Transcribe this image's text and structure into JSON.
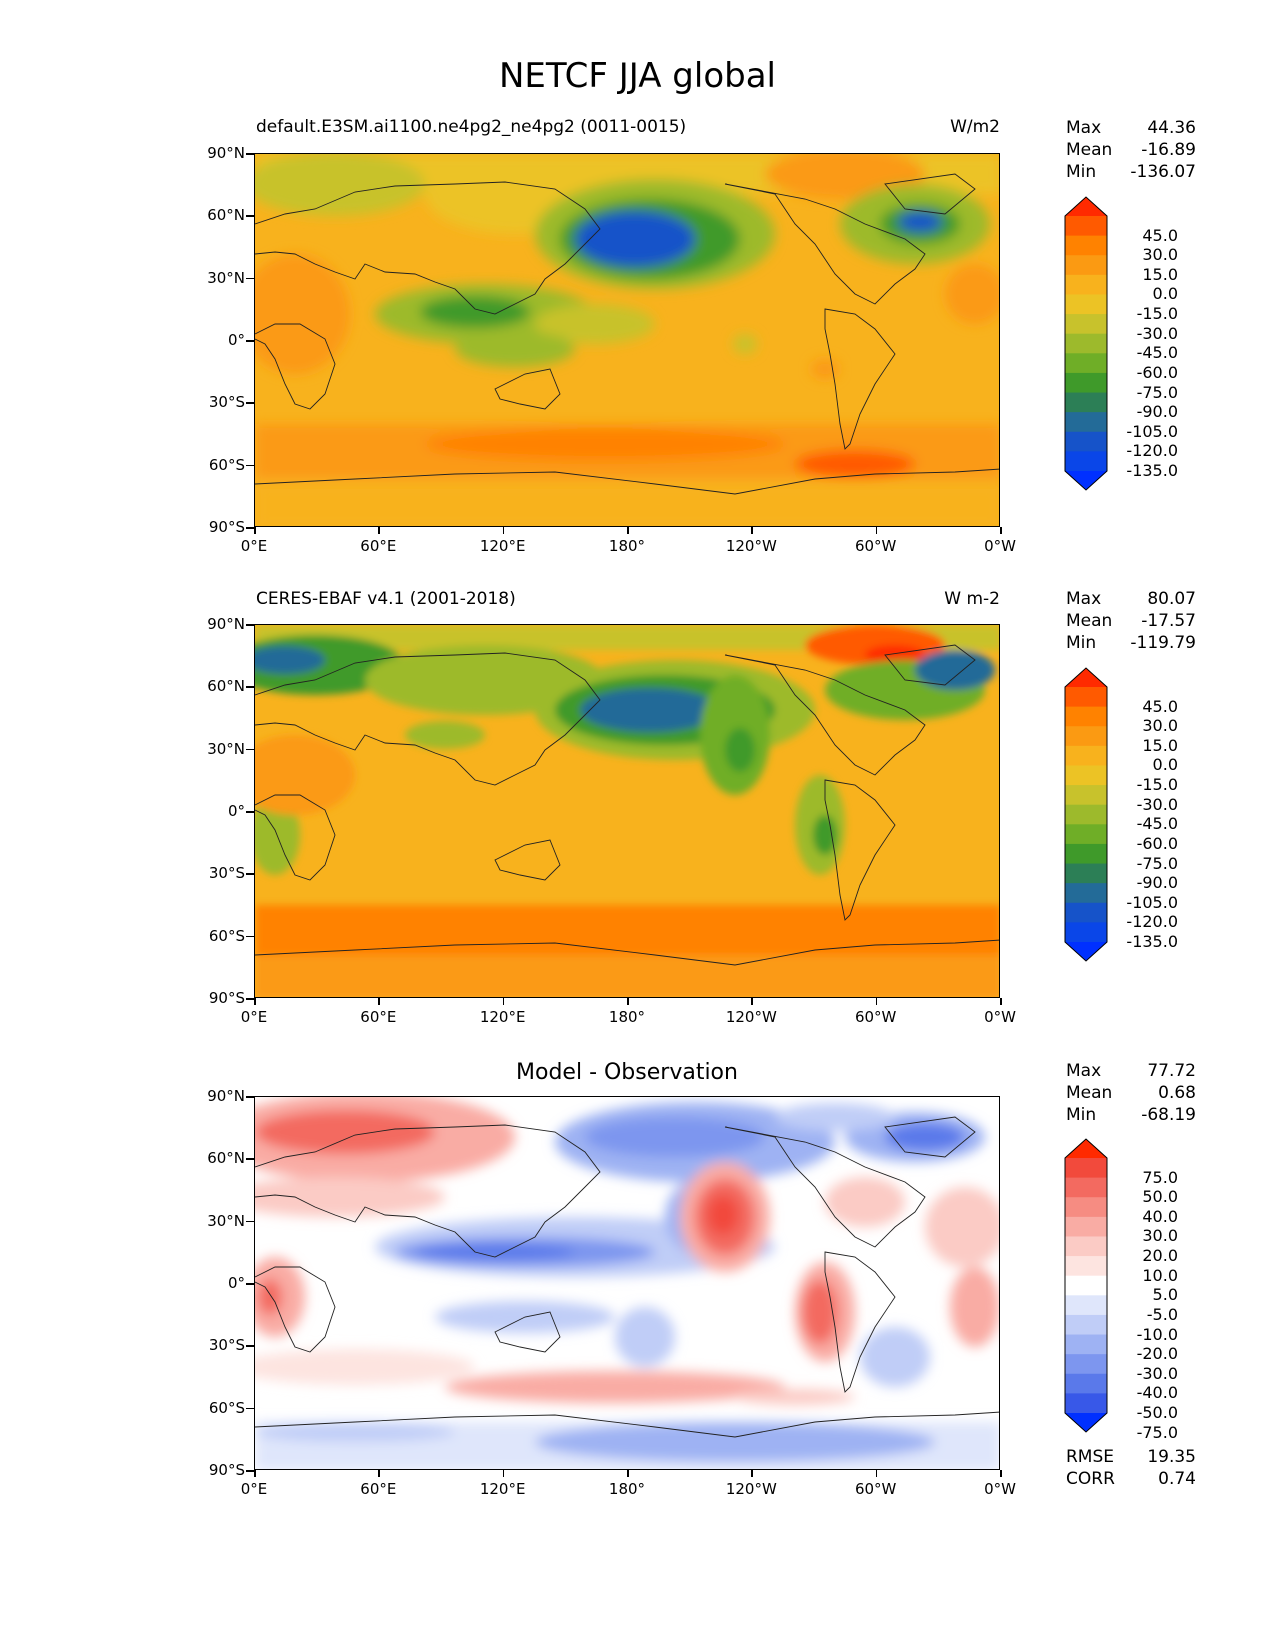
{
  "figure": {
    "title": "NETCF JJA global",
    "x_ticks": [
      "0°E",
      "60°E",
      "120°E",
      "180°",
      "120°W",
      "60°W",
      "0°W"
    ],
    "y_ticks": [
      "90°N",
      "60°N",
      "30°N",
      "0°",
      "30°S",
      "60°S",
      "90°S"
    ]
  },
  "panels": [
    {
      "left_title": "default.E3SM.ai1100.ne4pg2_ne4pg2 (0011-0015)",
      "right_title": "W/m2",
      "center_title": "",
      "stats": [
        {
          "label": "Max",
          "value": "44.36"
        },
        {
          "label": "Mean",
          "value": "-16.89"
        },
        {
          "label": "Min",
          "value": "-136.07"
        }
      ],
      "colorbar_labels": [
        "45.0",
        "30.0",
        "15.0",
        "0.0",
        "-15.0",
        "-30.0",
        "-45.0",
        "-60.0",
        "-75.0",
        "-90.0",
        "-105.0",
        "-120.0",
        "-135.0"
      ],
      "colorbar_colors": [
        "#ff2a00",
        "#ff5a00",
        "#ff8200",
        "#fb9a12",
        "#f8b21d",
        "#ecc325",
        "#c8c22c",
        "#9dba2c",
        "#6fae27",
        "#3f9a2a",
        "#2c7f56",
        "#236b98",
        "#1653c9",
        "#0a46e8",
        "#0030ff"
      ]
    },
    {
      "left_title": "CERES-EBAF v4.1 (2001-2018)",
      "right_title": "W m-2",
      "center_title": "",
      "stats": [
        {
          "label": "Max",
          "value": "80.07"
        },
        {
          "label": "Mean",
          "value": "-17.57"
        },
        {
          "label": "Min",
          "value": "-119.79"
        }
      ],
      "colorbar_labels": [
        "45.0",
        "30.0",
        "15.0",
        "0.0",
        "-15.0",
        "-30.0",
        "-45.0",
        "-60.0",
        "-75.0",
        "-90.0",
        "-105.0",
        "-120.0",
        "-135.0"
      ],
      "colorbar_colors": [
        "#ff2a00",
        "#ff5a00",
        "#ff8200",
        "#fb9a12",
        "#f8b21d",
        "#ecc325",
        "#c8c22c",
        "#9dba2c",
        "#6fae27",
        "#3f9a2a",
        "#2c7f56",
        "#236b98",
        "#1653c9",
        "#0a46e8",
        "#0030ff"
      ]
    },
    {
      "left_title": "",
      "right_title": "",
      "center_title": "Model - Observation",
      "stats": [
        {
          "label": "Max",
          "value": "77.72"
        },
        {
          "label": "Mean",
          "value": "0.68"
        },
        {
          "label": "Min",
          "value": "-68.19"
        }
      ],
      "metrics": [
        {
          "label": "RMSE",
          "value": "19.35"
        },
        {
          "label": "CORR",
          "value": "0.74"
        }
      ],
      "colorbar_labels": [
        "75.0",
        "50.0",
        "40.0",
        "30.0",
        "20.0",
        "10.0",
        "5.0",
        "-5.0",
        "-10.0",
        "-20.0",
        "-30.0",
        "-40.0",
        "-50.0",
        "-75.0"
      ],
      "colorbar_colors": [
        "#ff2a00",
        "#f24a3c",
        "#f36a60",
        "#f68c82",
        "#f9aca4",
        "#fbcbc5",
        "#fde4e0",
        "#ffffff",
        "#dfe6fb",
        "#c0cdf7",
        "#9eb2f3",
        "#7d96ef",
        "#5a79ea",
        "#3858e8",
        "#0030ff"
      ]
    }
  ]
}
